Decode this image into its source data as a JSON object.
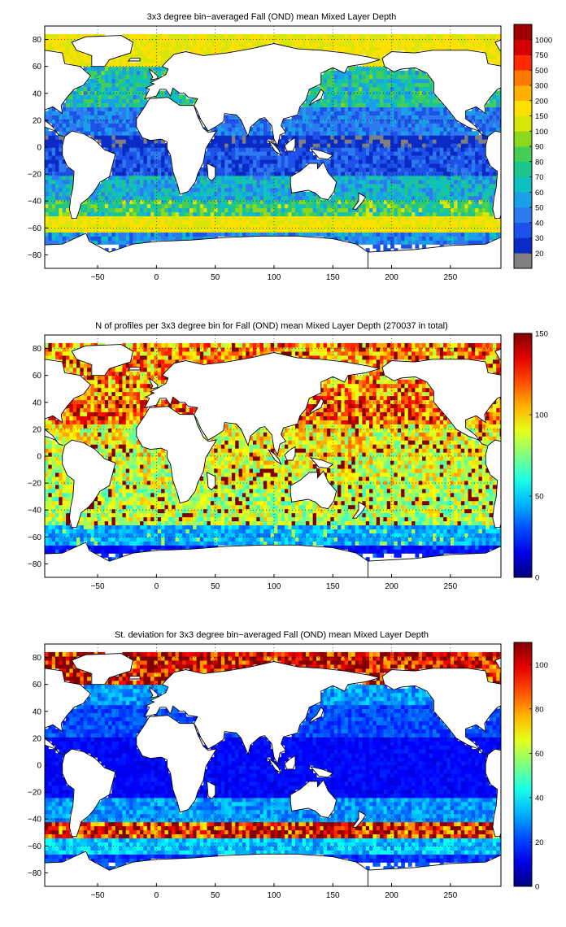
{
  "figure": {
    "panels": [
      {
        "title": "3x3 degree bin−averaged Fall (OND) mean Mixed Layer Depth",
        "colorbar": {
          "kind": "discrete",
          "labels": [
            "20",
            "30",
            "40",
            "50",
            "60",
            "70",
            "80",
            "90",
            "100",
            "150",
            "200",
            "300",
            "500",
            "750",
            "1000"
          ],
          "colors": [
            "#808080",
            "#0a2bc6",
            "#1c52e8",
            "#2e78f0",
            "#1aa0e8",
            "#0fc0c0",
            "#1ec68c",
            "#44ce58",
            "#8cd81c",
            "#d8e60a",
            "#ffe000",
            "#ffb000",
            "#ff7800",
            "#ff2a00",
            "#d40000",
            "#a00000"
          ]
        }
      },
      {
        "title": "N of profiles per 3x3 degree bin for Fall (OND) mean Mixed Layer Depth  (270037 in total)",
        "colorbar": {
          "kind": "continuous",
          "labels": [
            "0",
            "50",
            "100",
            "150"
          ],
          "range": [
            0,
            150
          ]
        }
      },
      {
        "title": "St. deviation for 3x3 degree bin−averaged Fall (OND) mean Mixed Layer Depth",
        "colorbar": {
          "kind": "continuous",
          "labels": [
            "0",
            "20",
            "40",
            "60",
            "80",
            "100"
          ],
          "range": [
            0,
            110
          ]
        }
      }
    ]
  },
  "chart_data": [
    {
      "type": "heatmap",
      "title": "3x3 degree bin−averaged Fall (OND) mean Mixed Layer Depth",
      "xlim": [
        -95,
        293
      ],
      "ylim": [
        -90,
        90
      ],
      "xticks": [
        -50,
        0,
        50,
        100,
        150,
        200,
        250
      ],
      "yticks": [
        -80,
        -60,
        -40,
        -20,
        0,
        20,
        40,
        60,
        80
      ],
      "grid": true,
      "colorbar_position": "right",
      "zones": [
        {
          "lat": [
            -90,
            -72
          ],
          "value": 30
        },
        {
          "lat": [
            -72,
            -62
          ],
          "value": 50
        },
        {
          "lat": [
            -62,
            -50
          ],
          "value": 150
        },
        {
          "lat": [
            -50,
            -40
          ],
          "value": 80
        },
        {
          "lat": [
            -40,
            -20
          ],
          "value": 60
        },
        {
          "lat": [
            -20,
            0
          ],
          "value": 35
        },
        {
          "lat": [
            0,
            10
          ],
          "value": 25
        },
        {
          "lat": [
            10,
            30
          ],
          "value": 45
        },
        {
          "lat": [
            30,
            45
          ],
          "value": 70
        },
        {
          "lat": [
            45,
            60
          ],
          "value": 70
        },
        {
          "lat": [
            60,
            90
          ],
          "value": 150
        }
      ]
    },
    {
      "type": "heatmap",
      "title": "N of profiles per 3x3 degree bin for Fall (OND) mean Mixed Layer Depth  (270037 in total)",
      "total_profiles": 270037,
      "xlim": [
        -95,
        293
      ],
      "ylim": [
        -90,
        90
      ],
      "xticks": [
        -50,
        0,
        50,
        100,
        150,
        200,
        250
      ],
      "yticks": [
        -80,
        -60,
        -40,
        -20,
        0,
        20,
        40,
        60,
        80
      ],
      "grid": true,
      "colorbar_position": "right",
      "zones": [
        {
          "lat": [
            -90,
            -65
          ],
          "value": 20
        },
        {
          "lat": [
            -65,
            -50
          ],
          "value": 45
        },
        {
          "lat": [
            -50,
            -20
          ],
          "value": 85
        },
        {
          "lat": [
            -20,
            0
          ],
          "value": 90
        },
        {
          "lat": [
            0,
            25
          ],
          "value": 95
        },
        {
          "lat": [
            25,
            45
          ],
          "value": 120
        },
        {
          "lat": [
            45,
            90
          ],
          "value": 110
        }
      ]
    },
    {
      "type": "heatmap",
      "title": "St. deviation for 3x3 degree bin−averaged Fall (OND) mean Mixed Layer Depth",
      "xlim": [
        -95,
        293
      ],
      "ylim": [
        -90,
        90
      ],
      "xticks": [
        -50,
        0,
        50,
        100,
        150,
        200,
        250
      ],
      "yticks": [
        -80,
        -60,
        -40,
        -20,
        0,
        20,
        40,
        60,
        80
      ],
      "grid": true,
      "colorbar_position": "right",
      "zones": [
        {
          "lat": [
            -90,
            -65
          ],
          "value": 20
        },
        {
          "lat": [
            -65,
            -53
          ],
          "value": 35
        },
        {
          "lat": [
            -53,
            -42
          ],
          "value": 95
        },
        {
          "lat": [
            -42,
            -25
          ],
          "value": 30
        },
        {
          "lat": [
            -25,
            20
          ],
          "value": 14
        },
        {
          "lat": [
            20,
            45
          ],
          "value": 22
        },
        {
          "lat": [
            45,
            60
          ],
          "value": 30
        },
        {
          "lat": [
            60,
            90
          ],
          "value": 100
        }
      ]
    }
  ]
}
